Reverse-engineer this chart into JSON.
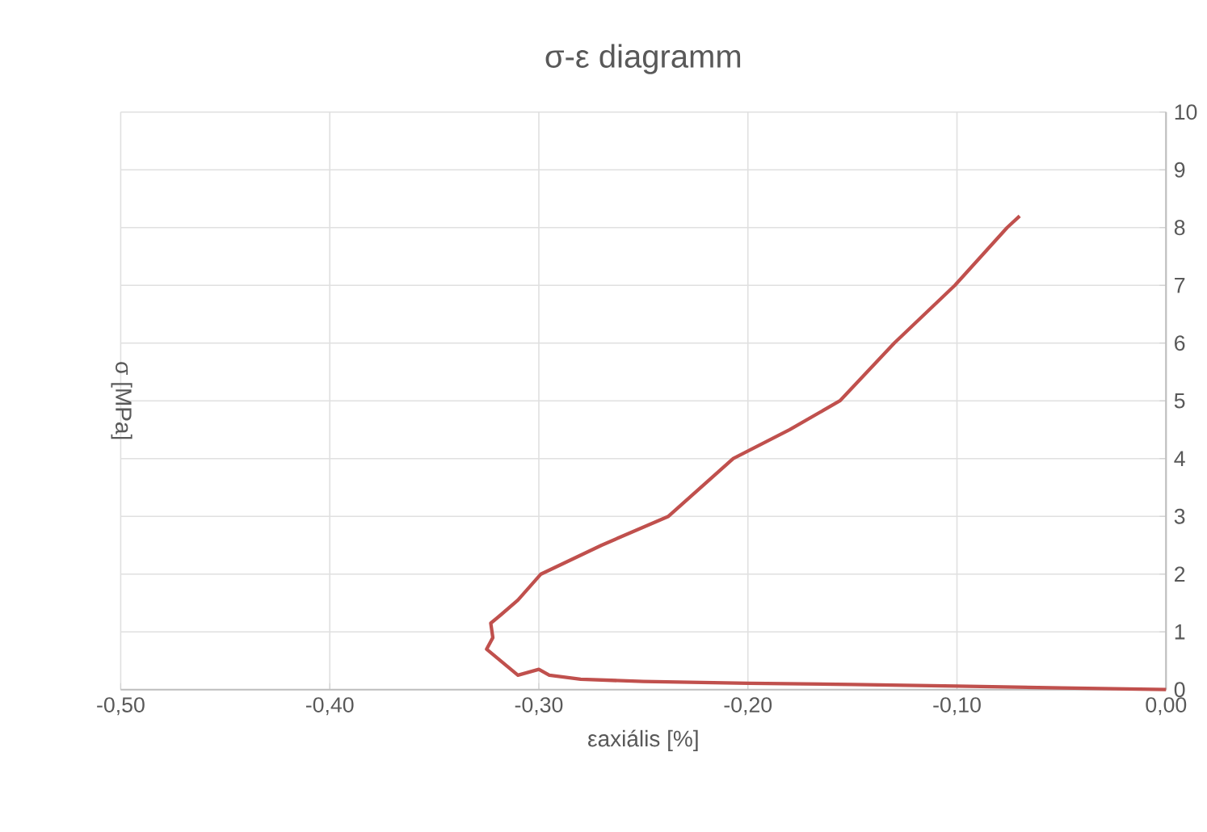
{
  "chart_data": {
    "type": "line",
    "title": "σ-ε  diagramm",
    "xlabel": "εaxiális [%]",
    "ylabel": "σ [MPa]",
    "x": [
      0,
      -0.05,
      -0.1,
      -0.15,
      -0.2,
      -0.25,
      -0.28,
      -0.295,
      -0.3,
      -0.31,
      -0.315,
      -0.32,
      -0.325,
      -0.322,
      -0.323,
      -0.318,
      -0.31,
      -0.299,
      -0.27,
      -0.238,
      -0.207,
      -0.18,
      -0.156,
      -0.13,
      -0.101,
      -0.076,
      -0.07
    ],
    "values": [
      0,
      0.03,
      0.06,
      0.09,
      0.11,
      0.14,
      0.18,
      0.25,
      0.35,
      0.25,
      0.4,
      0.55,
      0.7,
      0.9,
      1.15,
      1.3,
      1.55,
      2.0,
      2.5,
      3.0,
      4.0,
      4.5,
      5.0,
      6.0,
      7.0,
      8.0,
      8.2
    ],
    "color": "#c0504d",
    "xlim": [
      -0.5,
      0
    ],
    "xticks": [
      {
        "value": -0.5,
        "label": "-0,50"
      },
      {
        "value": -0.4,
        "label": "-0,40"
      },
      {
        "value": -0.3,
        "label": "-0,30"
      },
      {
        "value": -0.2,
        "label": "-0,20"
      },
      {
        "value": -0.1,
        "label": "-0,10"
      },
      {
        "value": 0,
        "label": "0,00"
      }
    ],
    "ylim": [
      0,
      10
    ],
    "yticks": [
      0,
      1,
      2,
      3,
      4,
      5,
      6,
      7,
      8,
      9,
      10
    ],
    "grid": true
  }
}
